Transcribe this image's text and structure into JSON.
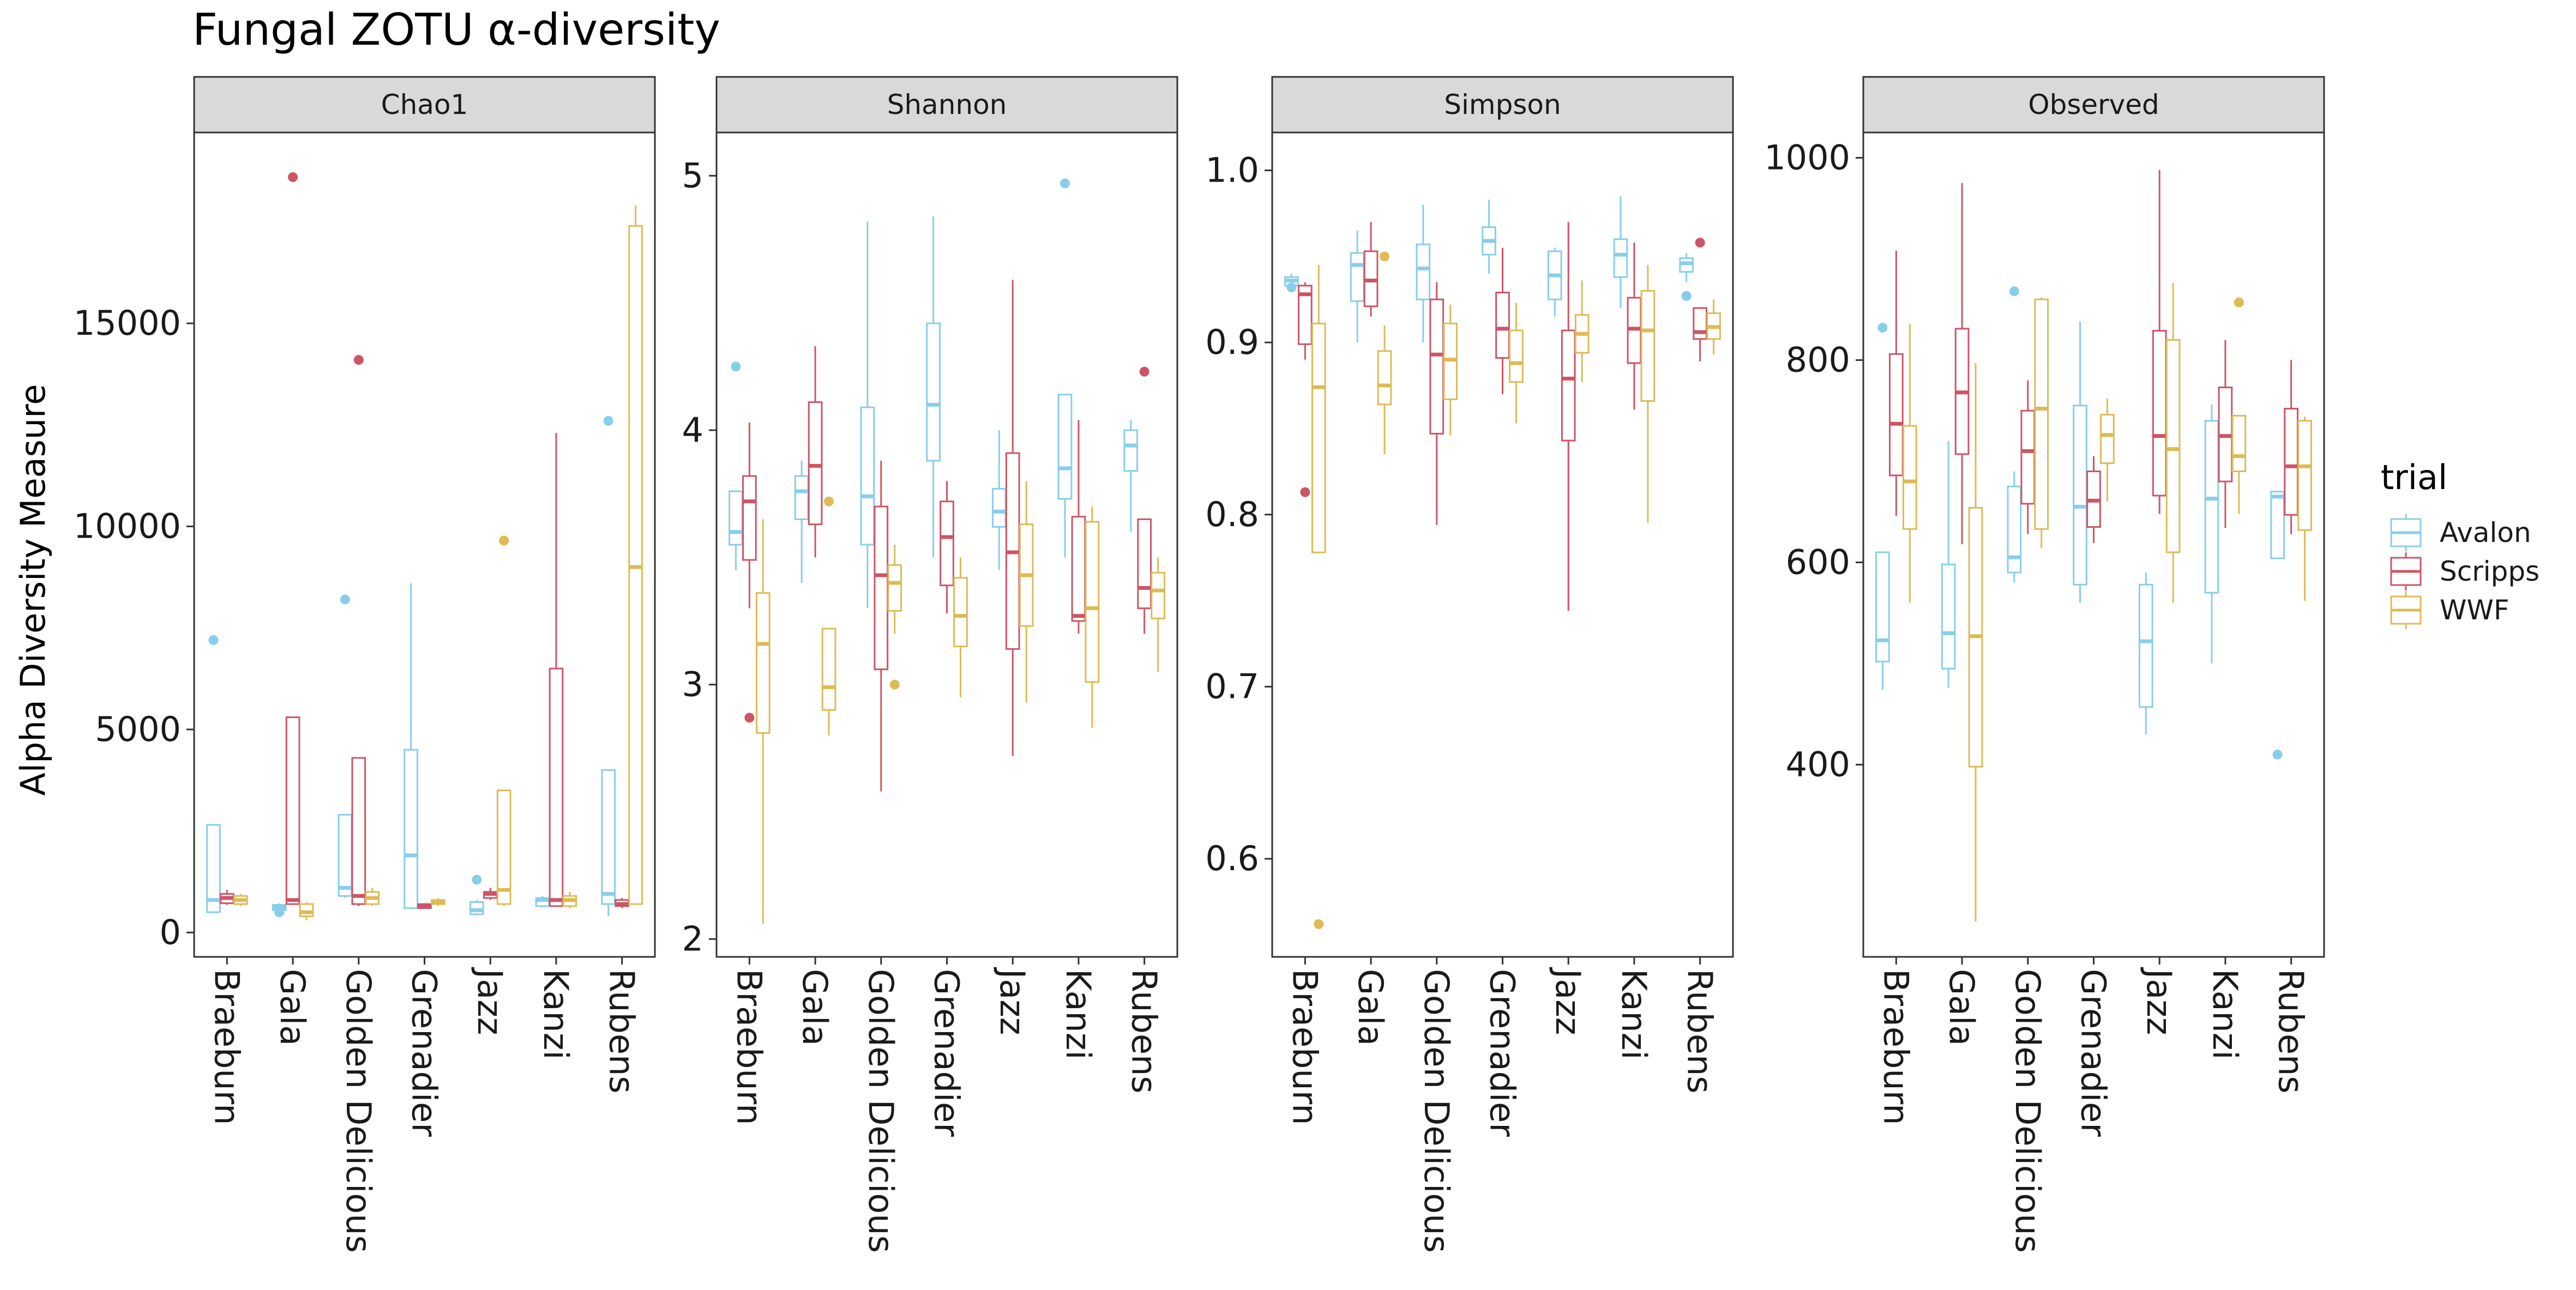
{
  "chart_data": {
    "type": "box",
    "title": "Fungal ZOTU α-diversity",
    "ylabel": "Alpha Diversity Measure",
    "xlabel": "",
    "categories": [
      "Braeburn",
      "Gala",
      "Golden Delicious",
      "Grenadier",
      "Jazz",
      "Kanzi",
      "Rubens"
    ],
    "legend": {
      "title": "trial",
      "position": "right",
      "entries": [
        {
          "name": "Avalon",
          "color": "#87CEEB"
        },
        {
          "name": "Scripps",
          "color": "#CC5566"
        },
        {
          "name": "WWF",
          "color": "#DDBB55"
        }
      ]
    },
    "series_order": [
      "Avalon",
      "Scripps",
      "WWF"
    ],
    "facets": [
      {
        "name": "Chao1",
        "ylim": [
          -600,
          19700
        ],
        "yticks": [
          0,
          5000,
          10000,
          15000
        ],
        "yticklabels": [
          "0",
          "5000",
          "10000",
          "15000"
        ],
        "boxes": {
          "Avalon": [
            {
              "q1": 500,
              "median": 800,
              "q3": 2650,
              "min": 480,
              "max": 2650,
              "outliers": [
                7200
              ]
            },
            {
              "q1": 550,
              "median": 620,
              "q3": 680,
              "min": 480,
              "max": 720,
              "outliers": [
                500
              ]
            },
            {
              "q1": 900,
              "median": 1100,
              "q3": 2900,
              "min": 850,
              "max": 2900,
              "outliers": [
                8200
              ]
            },
            {
              "q1": 600,
              "median": 1900,
              "q3": 4500,
              "min": 600,
              "max": 8600,
              "outliers": []
            },
            {
              "q1": 450,
              "median": 550,
              "q3": 750,
              "min": 420,
              "max": 800,
              "outliers": [
                1300
              ]
            },
            {
              "q1": 650,
              "median": 800,
              "q3": 850,
              "min": 620,
              "max": 900,
              "outliers": []
            },
            {
              "q1": 700,
              "median": 950,
              "q3": 4000,
              "min": 400,
              "max": 4000,
              "outliers": [
                12600
              ]
            }
          ],
          "Scripps": [
            {
              "q1": 720,
              "median": 850,
              "q3": 950,
              "min": 680,
              "max": 1050,
              "outliers": []
            },
            {
              "q1": 700,
              "median": 800,
              "q3": 5300,
              "min": 700,
              "max": 5300,
              "outliers": [
                18600
              ]
            },
            {
              "q1": 700,
              "median": 900,
              "q3": 4300,
              "min": 650,
              "max": 4300,
              "outliers": [
                14100
              ]
            },
            {
              "q1": 600,
              "median": 650,
              "q3": 700,
              "min": 580,
              "max": 720,
              "outliers": []
            },
            {
              "q1": 850,
              "median": 950,
              "q3": 1000,
              "min": 800,
              "max": 1100,
              "outliers": []
            },
            {
              "q1": 650,
              "median": 800,
              "q3": 6500,
              "min": 650,
              "max": 12300,
              "outliers": []
            },
            {
              "q1": 650,
              "median": 700,
              "q3": 800,
              "min": 600,
              "max": 850,
              "outliers": []
            }
          ],
          "WWF": [
            {
              "q1": 700,
              "median": 800,
              "q3": 900,
              "min": 650,
              "max": 950,
              "outliers": []
            },
            {
              "q1": 400,
              "median": 500,
              "q3": 700,
              "min": 300,
              "max": 750,
              "outliers": []
            },
            {
              "q1": 700,
              "median": 850,
              "q3": 1000,
              "min": 650,
              "max": 1100,
              "outliers": []
            },
            {
              "q1": 700,
              "median": 750,
              "q3": 800,
              "min": 650,
              "max": 850,
              "outliers": []
            },
            {
              "q1": 700,
              "median": 1050,
              "q3": 3500,
              "min": 650,
              "max": 3500,
              "outliers": [
                9650
              ]
            },
            {
              "q1": 650,
              "median": 800,
              "q3": 900,
              "min": 600,
              "max": 1000,
              "outliers": []
            },
            {
              "q1": 700,
              "median": 9000,
              "q3": 17400,
              "min": 700,
              "max": 17900,
              "outliers": []
            }
          ]
        }
      },
      {
        "name": "Shannon",
        "ylim": [
          1.93,
          5.17
        ],
        "yticks": [
          2,
          3,
          4,
          5
        ],
        "yticklabels": [
          "2",
          "3",
          "4",
          "5"
        ],
        "boxes": {
          "Avalon": [
            {
              "q1": 3.55,
              "median": 3.6,
              "q3": 3.76,
              "min": 3.45,
              "max": 3.76,
              "outliers": [
                4.25
              ]
            },
            {
              "q1": 3.65,
              "median": 3.76,
              "q3": 3.82,
              "min": 3.4,
              "max": 3.88,
              "outliers": []
            },
            {
              "q1": 3.55,
              "median": 3.74,
              "q3": 4.09,
              "min": 3.3,
              "max": 4.82,
              "outliers": []
            },
            {
              "q1": 3.88,
              "median": 4.1,
              "q3": 4.42,
              "min": 3.5,
              "max": 4.84,
              "outliers": []
            },
            {
              "q1": 3.62,
              "median": 3.68,
              "q3": 3.77,
              "min": 3.45,
              "max": 4.0,
              "outliers": []
            },
            {
              "q1": 3.73,
              "median": 3.85,
              "q3": 4.14,
              "min": 3.5,
              "max": 4.14,
              "outliers": [
                4.97
              ]
            },
            {
              "q1": 3.84,
              "median": 3.94,
              "q3": 4.0,
              "min": 3.6,
              "max": 4.04,
              "outliers": []
            }
          ],
          "Scripps": [
            {
              "q1": 3.49,
              "median": 3.72,
              "q3": 3.82,
              "min": 3.3,
              "max": 4.03,
              "outliers": [
                2.87
              ]
            },
            {
              "q1": 3.63,
              "median": 3.86,
              "q3": 4.11,
              "min": 3.5,
              "max": 4.33,
              "outliers": []
            },
            {
              "q1": 3.06,
              "median": 3.43,
              "q3": 3.7,
              "min": 2.58,
              "max": 3.88,
              "outliers": []
            },
            {
              "q1": 3.39,
              "median": 3.58,
              "q3": 3.72,
              "min": 3.28,
              "max": 3.8,
              "outliers": []
            },
            {
              "q1": 3.14,
              "median": 3.52,
              "q3": 3.91,
              "min": 2.72,
              "max": 4.59,
              "outliers": []
            },
            {
              "q1": 3.25,
              "median": 3.27,
              "q3": 3.66,
              "min": 3.2,
              "max": 4.04,
              "outliers": []
            },
            {
              "q1": 3.3,
              "median": 3.38,
              "q3": 3.65,
              "min": 3.2,
              "max": 3.65,
              "outliers": [
                4.23
              ]
            }
          ],
          "WWF": [
            {
              "q1": 2.81,
              "median": 3.16,
              "q3": 3.36,
              "min": 2.06,
              "max": 3.65,
              "outliers": []
            },
            {
              "q1": 2.9,
              "median": 2.99,
              "q3": 3.22,
              "min": 2.8,
              "max": 3.22,
              "outliers": [
                3.72
              ]
            },
            {
              "q1": 3.29,
              "median": 3.4,
              "q3": 3.47,
              "min": 3.2,
              "max": 3.55,
              "outliers": [
                3.0
              ]
            },
            {
              "q1": 3.15,
              "median": 3.27,
              "q3": 3.42,
              "min": 2.95,
              "max": 3.5,
              "outliers": []
            },
            {
              "q1": 3.23,
              "median": 3.43,
              "q3": 3.63,
              "min": 2.93,
              "max": 3.8,
              "outliers": []
            },
            {
              "q1": 3.01,
              "median": 3.3,
              "q3": 3.64,
              "min": 2.83,
              "max": 3.7,
              "outliers": []
            },
            {
              "q1": 3.26,
              "median": 3.37,
              "q3": 3.44,
              "min": 3.05,
              "max": 3.5,
              "outliers": []
            }
          ]
        }
      },
      {
        "name": "Simpson",
        "ylim": [
          0.543,
          1.022
        ],
        "yticks": [
          0.6,
          0.7,
          0.8,
          0.9,
          1.0
        ],
        "yticklabels": [
          "0.6",
          "0.7",
          "0.8",
          "0.9",
          "1.0"
        ],
        "boxes": {
          "Avalon": [
            {
              "q1": 0.933,
              "median": 0.936,
              "q3": 0.938,
              "min": 0.931,
              "max": 0.94,
              "outliers": [
                0.932
              ]
            },
            {
              "q1": 0.924,
              "median": 0.945,
              "q3": 0.952,
              "min": 0.9,
              "max": 0.965,
              "outliers": []
            },
            {
              "q1": 0.925,
              "median": 0.943,
              "q3": 0.957,
              "min": 0.9,
              "max": 0.98,
              "outliers": []
            },
            {
              "q1": 0.951,
              "median": 0.959,
              "q3": 0.967,
              "min": 0.94,
              "max": 0.983,
              "outliers": []
            },
            {
              "q1": 0.925,
              "median": 0.939,
              "q3": 0.953,
              "min": 0.915,
              "max": 0.955,
              "outliers": []
            },
            {
              "q1": 0.938,
              "median": 0.951,
              "q3": 0.96,
              "min": 0.92,
              "max": 0.985,
              "outliers": []
            },
            {
              "q1": 0.941,
              "median": 0.946,
              "q3": 0.949,
              "min": 0.935,
              "max": 0.952,
              "outliers": [
                0.927
              ]
            }
          ],
          "Scripps": [
            {
              "q1": 0.899,
              "median": 0.928,
              "q3": 0.933,
              "min": 0.89,
              "max": 0.935,
              "outliers": [
                0.813
              ]
            },
            {
              "q1": 0.921,
              "median": 0.936,
              "q3": 0.953,
              "min": 0.915,
              "max": 0.97,
              "outliers": []
            },
            {
              "q1": 0.847,
              "median": 0.893,
              "q3": 0.925,
              "min": 0.794,
              "max": 0.935,
              "outliers": []
            },
            {
              "q1": 0.891,
              "median": 0.908,
              "q3": 0.929,
              "min": 0.87,
              "max": 0.955,
              "outliers": []
            },
            {
              "q1": 0.843,
              "median": 0.879,
              "q3": 0.907,
              "min": 0.744,
              "max": 0.97,
              "outliers": []
            },
            {
              "q1": 0.888,
              "median": 0.908,
              "q3": 0.926,
              "min": 0.861,
              "max": 0.958,
              "outliers": []
            },
            {
              "q1": 0.902,
              "median": 0.906,
              "q3": 0.92,
              "min": 0.889,
              "max": 0.92,
              "outliers": [
                0.958
              ]
            }
          ],
          "WWF": [
            {
              "q1": 0.778,
              "median": 0.874,
              "q3": 0.911,
              "min": 0.778,
              "max": 0.945,
              "outliers": [
                0.562
              ]
            },
            {
              "q1": 0.864,
              "median": 0.875,
              "q3": 0.895,
              "min": 0.835,
              "max": 0.91,
              "outliers": [
                0.95
              ]
            },
            {
              "q1": 0.867,
              "median": 0.89,
              "q3": 0.911,
              "min": 0.846,
              "max": 0.922,
              "outliers": []
            },
            {
              "q1": 0.877,
              "median": 0.888,
              "q3": 0.907,
              "min": 0.853,
              "max": 0.923,
              "outliers": []
            },
            {
              "q1": 0.894,
              "median": 0.905,
              "q3": 0.916,
              "min": 0.877,
              "max": 0.936,
              "outliers": []
            },
            {
              "q1": 0.866,
              "median": 0.907,
              "q3": 0.93,
              "min": 0.795,
              "max": 0.945,
              "outliers": []
            },
            {
              "q1": 0.902,
              "median": 0.909,
              "q3": 0.917,
              "min": 0.893,
              "max": 0.925,
              "outliers": []
            }
          ]
        }
      },
      {
        "name": "Observed",
        "ylim": [
          210,
          1025
        ],
        "yticks": [
          400,
          600,
          800,
          1000
        ],
        "yticklabels": [
          "400",
          "600",
          "800",
          "1000"
        ],
        "boxes": {
          "Avalon": [
            {
              "q1": 502,
              "median": 523,
              "q3": 610,
              "min": 474,
              "max": 610,
              "outliers": [
                832
              ]
            },
            {
              "q1": 495,
              "median": 530,
              "q3": 598,
              "min": 476,
              "max": 720,
              "outliers": []
            },
            {
              "q1": 590,
              "median": 605,
              "q3": 675,
              "min": 580,
              "max": 690,
              "outliers": [
                868
              ]
            },
            {
              "q1": 578,
              "median": 655,
              "q3": 755,
              "min": 560,
              "max": 838,
              "outliers": []
            },
            {
              "q1": 457,
              "median": 522,
              "q3": 578,
              "min": 430,
              "max": 590,
              "outliers": []
            },
            {
              "q1": 570,
              "median": 663,
              "q3": 740,
              "min": 500,
              "max": 756,
              "outliers": []
            },
            {
              "q1": 604,
              "median": 665,
              "q3": 670,
              "min": 604,
              "max": 670,
              "outliers": [
                410
              ]
            }
          ],
          "Scripps": [
            {
              "q1": 686,
              "median": 737,
              "q3": 806,
              "min": 646,
              "max": 908,
              "outliers": []
            },
            {
              "q1": 707,
              "median": 768,
              "q3": 831,
              "min": 618,
              "max": 975,
              "outliers": []
            },
            {
              "q1": 658,
              "median": 710,
              "q3": 750,
              "min": 628,
              "max": 780,
              "outliers": []
            },
            {
              "q1": 635,
              "median": 661,
              "q3": 690,
              "min": 619,
              "max": 705,
              "outliers": []
            },
            {
              "q1": 666,
              "median": 725,
              "q3": 829,
              "min": 648,
              "max": 988,
              "outliers": []
            },
            {
              "q1": 680,
              "median": 725,
              "q3": 773,
              "min": 634,
              "max": 820,
              "outliers": []
            },
            {
              "q1": 647,
              "median": 695,
              "q3": 752,
              "min": 628,
              "max": 800,
              "outliers": []
            }
          ],
          "WWF": [
            {
              "q1": 633,
              "median": 680,
              "q3": 735,
              "min": 560,
              "max": 836,
              "outliers": []
            },
            {
              "q1": 398,
              "median": 527,
              "q3": 654,
              "min": 245,
              "max": 797,
              "outliers": []
            },
            {
              "q1": 633,
              "median": 752,
              "q3": 860,
              "min": 614,
              "max": 862,
              "outliers": []
            },
            {
              "q1": 698,
              "median": 726,
              "q3": 746,
              "min": 660,
              "max": 762,
              "outliers": []
            },
            {
              "q1": 610,
              "median": 712,
              "q3": 820,
              "min": 560,
              "max": 876,
              "outliers": []
            },
            {
              "q1": 690,
              "median": 705,
              "q3": 745,
              "min": 648,
              "max": 745,
              "outliers": [
                857
              ]
            },
            {
              "q1": 632,
              "median": 695,
              "q3": 740,
              "min": 562,
              "max": 744,
              "outliers": []
            }
          ]
        }
      }
    ]
  }
}
